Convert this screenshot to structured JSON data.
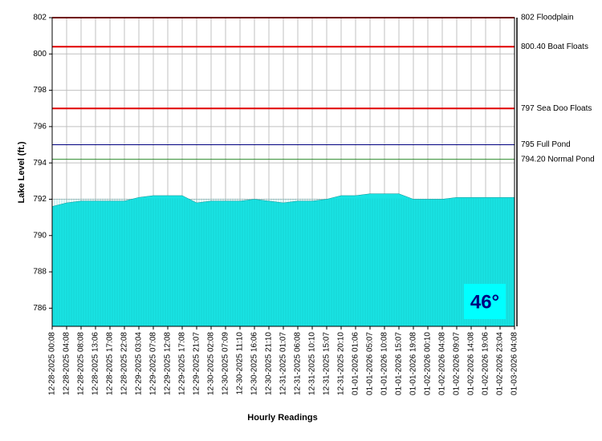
{
  "chart_data": {
    "type": "area",
    "y_label": "Lake Level (ft.)",
    "x_label": "Hourly Readings",
    "categories": [
      "12-28-2025 00:08",
      "12-28-2025 04:08",
      "12-28-2025 08:08",
      "12-28-2025 13:06",
      "12-28-2025 17:08",
      "12-28-2025 22:08",
      "12-29-2025 03:04",
      "12-29-2025 07:08",
      "12-29-2025 12:08",
      "12-29-2025 17:08",
      "12-29-2025 21:07",
      "12-30-2025 02:08",
      "12-30-2025 07:09",
      "12-30-2025 11:10",
      "12-30-2025 16:06",
      "12-30-2025 21:10",
      "12-31-2025 01:07",
      "12-31-2025 06:08",
      "12-31-2025 10:10",
      "12-31-2025 15:07",
      "12-31-2025 20:10",
      "01-01-2026 01:06",
      "01-01-2026 05:07",
      "01-01-2026 10:08",
      "01-01-2026 15:07",
      "01-01-2026 19:08",
      "01-02-2026 00:10",
      "01-02-2026 04:08",
      "01-02-2026 09:07",
      "01-02-2026 14:08",
      "01-02-2026 19:06",
      "01-02-2026 23:04",
      "01-03-2026 04:08"
    ],
    "values": [
      791.6,
      791.8,
      791.9,
      791.9,
      791.9,
      791.9,
      792.1,
      792.2,
      792.2,
      792.2,
      791.8,
      791.9,
      791.9,
      791.9,
      792.0,
      791.9,
      791.8,
      791.9,
      791.9,
      792.0,
      792.2,
      792.2,
      792.3,
      792.3,
      792.3,
      792.0,
      792.0,
      792.0,
      792.1,
      792.1,
      792.1,
      792.1,
      792.1
    ],
    "color": "#19e3e3",
    "ylim": [
      785,
      802
    ],
    "yticks": [
      786,
      788,
      790,
      792,
      794,
      796,
      798,
      800,
      802
    ],
    "grid": true,
    "reference_lines": [
      {
        "value": 802,
        "label": "802 Floodplain",
        "color": "#e00000"
      },
      {
        "value": 800.4,
        "label": "800.40 Boat Floats",
        "color": "#e00000"
      },
      {
        "value": 797,
        "label": "797 Sea Doo Floats",
        "color": "#e00000"
      },
      {
        "value": 795,
        "label": "795 Full Pond",
        "color": "#000080"
      },
      {
        "value": 794.2,
        "label": "794.20 Normal Pond",
        "color": "#2e8b2e"
      }
    ],
    "temperature_label": "46°"
  }
}
